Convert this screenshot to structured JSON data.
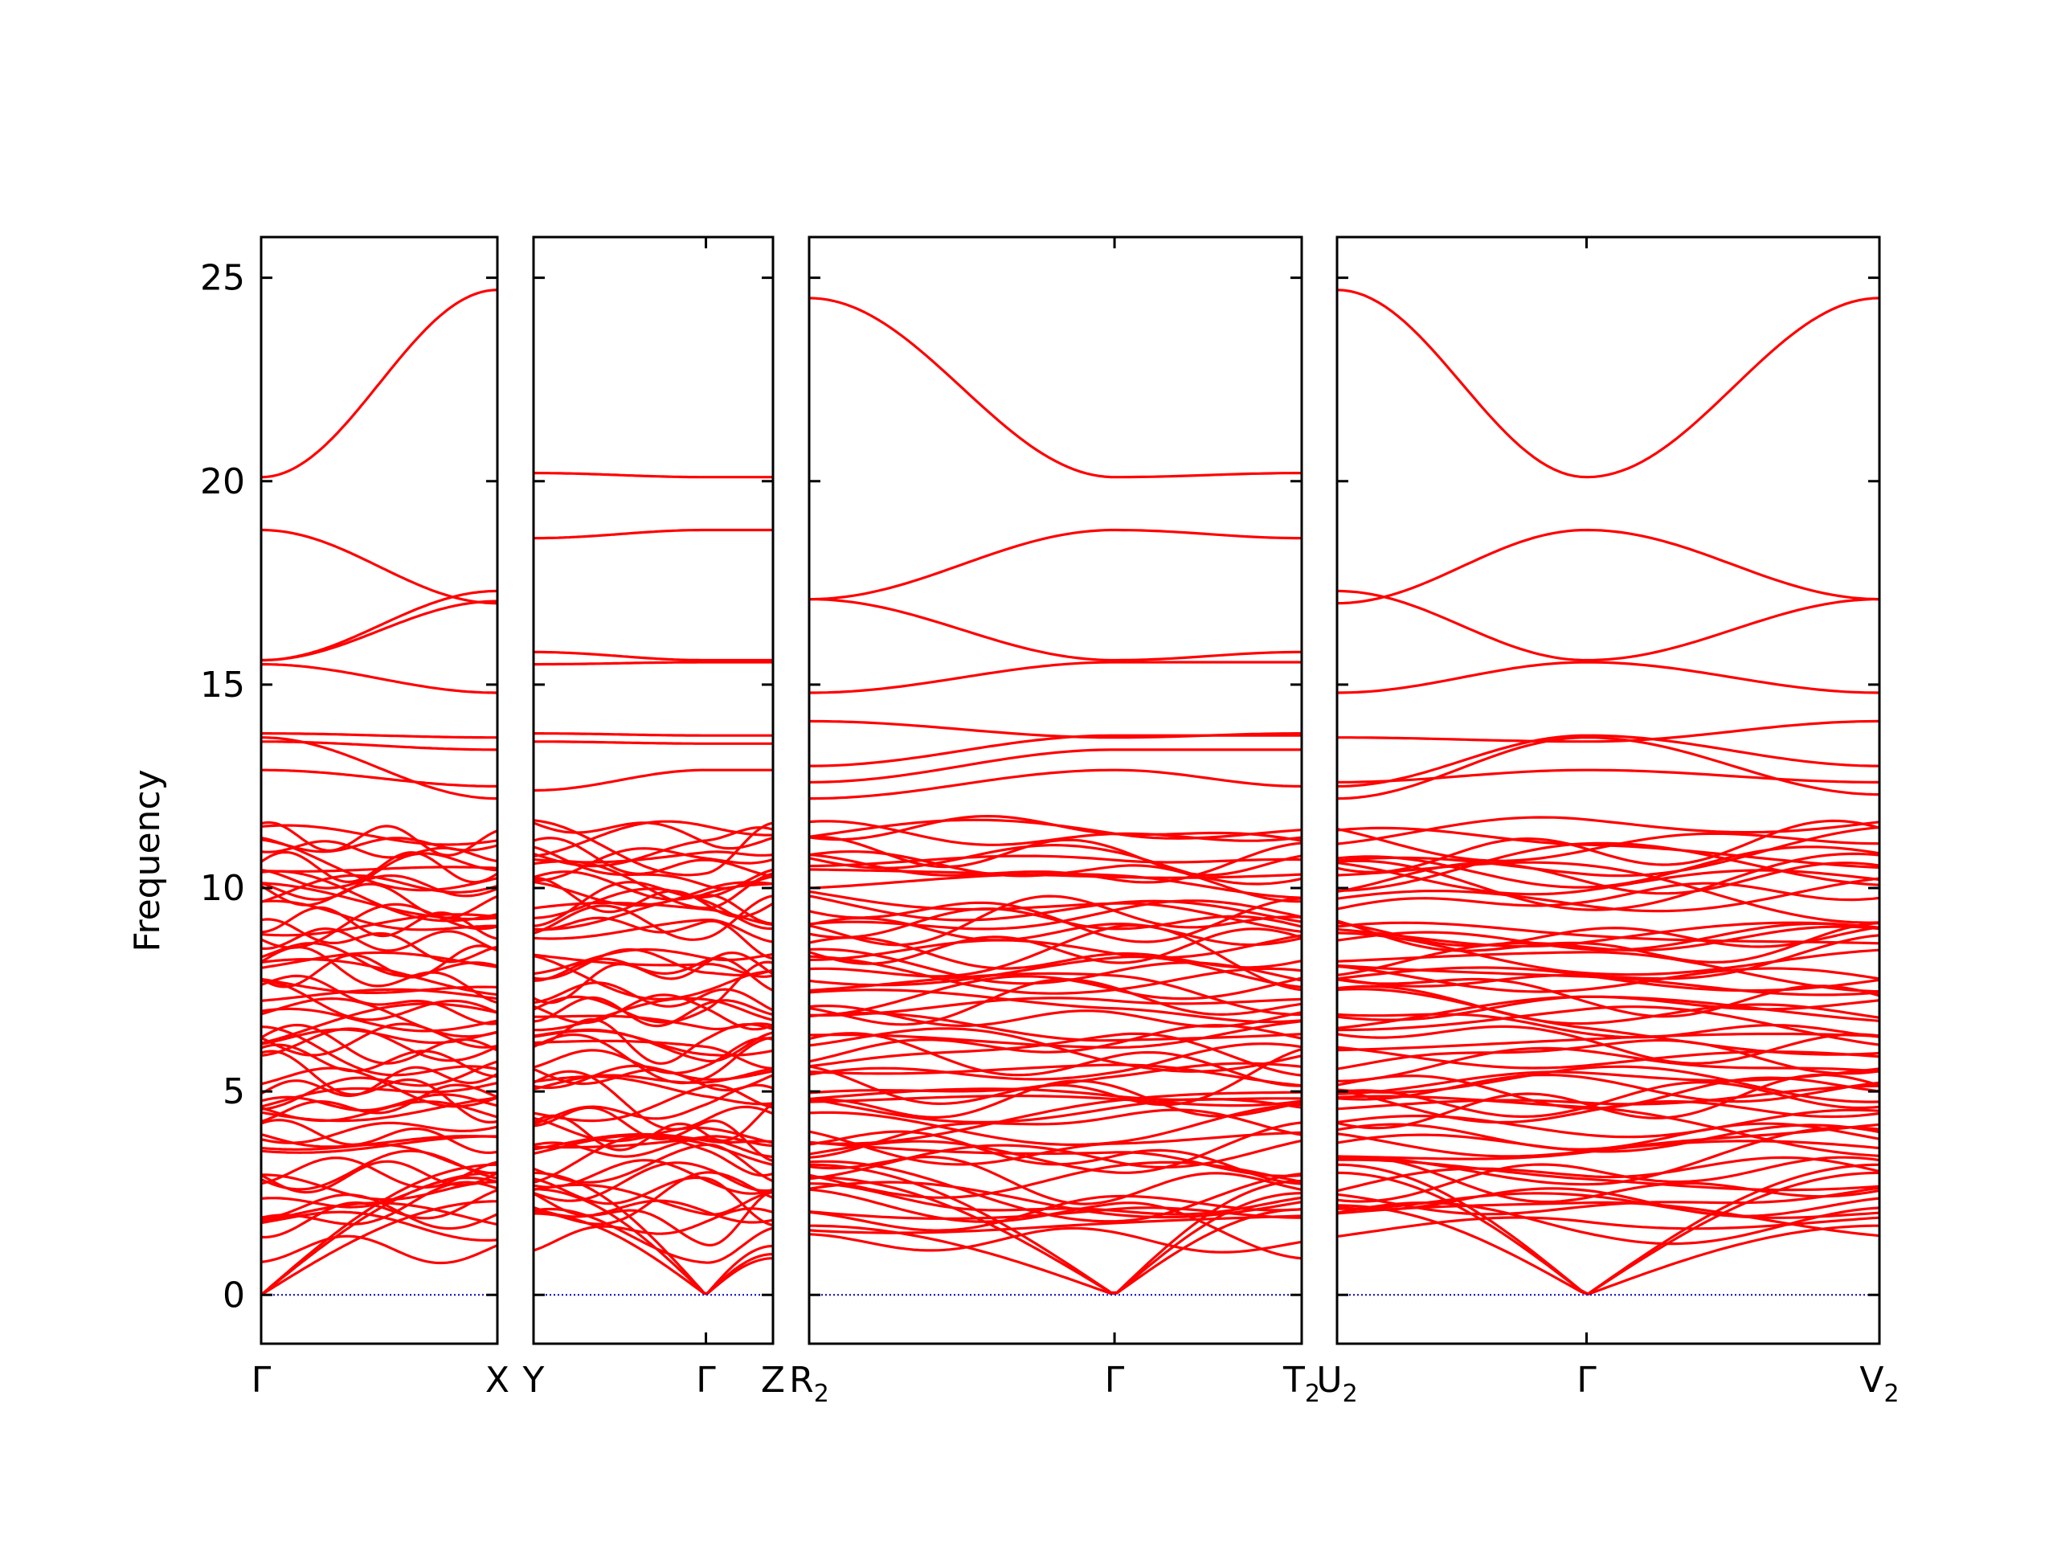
{
  "chart_data": {
    "type": "line",
    "title": "",
    "xlabel": "",
    "ylabel": "Frequency",
    "ylim": [
      -1.2,
      26
    ],
    "y_ticks": [
      "0",
      "5",
      "10",
      "15",
      "20",
      "25"
    ],
    "y_tick_values": [
      0,
      5,
      10,
      15,
      20,
      25
    ],
    "grid": false,
    "legend": "none",
    "colors": {
      "bands": "#ff0000",
      "zero_line": "#0000cc",
      "axes": "#000000"
    },
    "panels": [
      {
        "k_labels": [
          {
            "pos": 0.0,
            "main": "Γ",
            "sub": ""
          },
          {
            "pos": 1.0,
            "main": "X",
            "sub": ""
          }
        ],
        "bands": [
          {
            "name": "acoustic-1",
            "values": [
              0,
              2.3
            ]
          },
          {
            "name": "acoustic-2",
            "values": [
              0,
              3.0
            ]
          },
          {
            "name": "acoustic-3",
            "values": [
              0,
              3.2
            ]
          },
          {
            "name": "band-17.05",
            "values": [
              15.6,
              17.05
            ]
          },
          {
            "name": "band-17.3",
            "values": [
              15.6,
              17.3
            ]
          },
          {
            "name": "band-14.8",
            "values": [
              15.5,
              14.8
            ]
          },
          {
            "name": "band-18.8",
            "values": [
              18.8,
              17.0
            ]
          },
          {
            "name": "band-20.1",
            "values": [
              20.1,
              24.7
            ]
          },
          {
            "name": "band-13.7",
            "values": [
              13.8,
              13.7
            ]
          },
          {
            "name": "band-13.4",
            "values": [
              13.6,
              13.4
            ]
          },
          {
            "name": "band-12.5",
            "values": [
              12.9,
              12.5
            ]
          },
          {
            "name": "band-12.2",
            "values": [
              13.7,
              12.2
            ]
          }
        ]
      },
      {
        "k_labels": [
          {
            "pos": 0.0,
            "main": "Y",
            "sub": ""
          },
          {
            "pos": 0.72,
            "main": "Γ",
            "sub": ""
          },
          {
            "pos": 1.0,
            "main": "Z",
            "sub": ""
          }
        ],
        "bands": [
          {
            "name": "acoustic-1",
            "values": [
              2.0,
              0,
              0.9
            ]
          },
          {
            "name": "acoustic-2",
            "values": [
              2.6,
              0,
              1.2
            ]
          },
          {
            "name": "acoustic-3",
            "values": [
              3.0,
              0,
              1.0
            ]
          },
          {
            "name": "band-20.1",
            "values": [
              20.2,
              20.1,
              20.1
            ]
          },
          {
            "name": "band-18.7",
            "values": [
              18.6,
              18.8,
              18.8
            ]
          },
          {
            "name": "band-15.6",
            "values": [
              15.8,
              15.6,
              15.6
            ]
          },
          {
            "name": "band-15.5",
            "values": [
              15.5,
              15.55,
              15.55
            ]
          },
          {
            "name": "band-13.8",
            "values": [
              13.8,
              13.75,
              13.75
            ]
          },
          {
            "name": "band-13.55",
            "values": [
              13.6,
              13.55,
              13.55
            ]
          },
          {
            "name": "band-12.9",
            "values": [
              12.4,
              12.9,
              12.9
            ]
          }
        ]
      },
      {
        "k_labels": [
          {
            "pos": 0.0,
            "main": "R",
            "sub": "2"
          },
          {
            "pos": 0.62,
            "main": "Γ",
            "sub": ""
          },
          {
            "pos": 1.0,
            "main": "T",
            "sub": "2"
          }
        ],
        "bands": [
          {
            "name": "acoustic-1",
            "values": [
              1.7,
              0,
              2.1
            ]
          },
          {
            "name": "acoustic-2",
            "values": [
              2.9,
              0,
              2.5
            ]
          },
          {
            "name": "acoustic-3",
            "values": [
              3.2,
              0,
              2.8
            ]
          },
          {
            "name": "band-24.4",
            "values": [
              24.5,
              20.1,
              20.2
            ]
          },
          {
            "name": "band-18.7",
            "values": [
              17.1,
              18.8,
              18.6
            ]
          },
          {
            "name": "band-17.1",
            "values": [
              17.1,
              15.6,
              15.8
            ]
          },
          {
            "name": "band-14.8",
            "values": [
              14.8,
              15.55,
              15.55
            ]
          },
          {
            "name": "band-14.1",
            "values": [
              14.1,
              13.7,
              13.8
            ]
          },
          {
            "name": "band-13.0",
            "values": [
              13.0,
              13.75,
              13.75
            ]
          },
          {
            "name": "band-12.6",
            "values": [
              12.6,
              13.4,
              13.4
            ]
          },
          {
            "name": "band-12.2",
            "values": [
              12.2,
              12.9,
              12.5
            ]
          }
        ]
      },
      {
        "k_labels": [
          {
            "pos": 0.0,
            "main": "U",
            "sub": "2"
          },
          {
            "pos": 0.46,
            "main": "Γ",
            "sub": ""
          },
          {
            "pos": 1.0,
            "main": "V",
            "sub": "2"
          }
        ],
        "bands": [
          {
            "name": "acoustic-1",
            "values": [
              2.2,
              0,
              1.7
            ]
          },
          {
            "name": "acoustic-2",
            "values": [
              3.0,
              0,
              3.0
            ]
          },
          {
            "name": "acoustic-3",
            "values": [
              3.2,
              0,
              3.2
            ]
          },
          {
            "name": "band-24.7",
            "values": [
              24.7,
              20.1,
              24.5
            ]
          },
          {
            "name": "band-18.7",
            "values": [
              17.0,
              18.8,
              17.1
            ]
          },
          {
            "name": "band-17.3",
            "values": [
              17.3,
              15.6,
              17.1
            ]
          },
          {
            "name": "band-14.8",
            "values": [
              14.8,
              15.55,
              14.8
            ]
          },
          {
            "name": "band-13.7",
            "values": [
              12.5,
              13.75,
              13.0
            ]
          },
          {
            "name": "band-13.4",
            "values": [
              12.2,
              13.7,
              12.3
            ]
          },
          {
            "name": "band-12.9",
            "values": [
              12.6,
              12.9,
              12.6
            ]
          },
          {
            "name": "band-14.1",
            "values": [
              13.7,
              13.6,
              14.1
            ]
          }
        ]
      }
    ]
  }
}
